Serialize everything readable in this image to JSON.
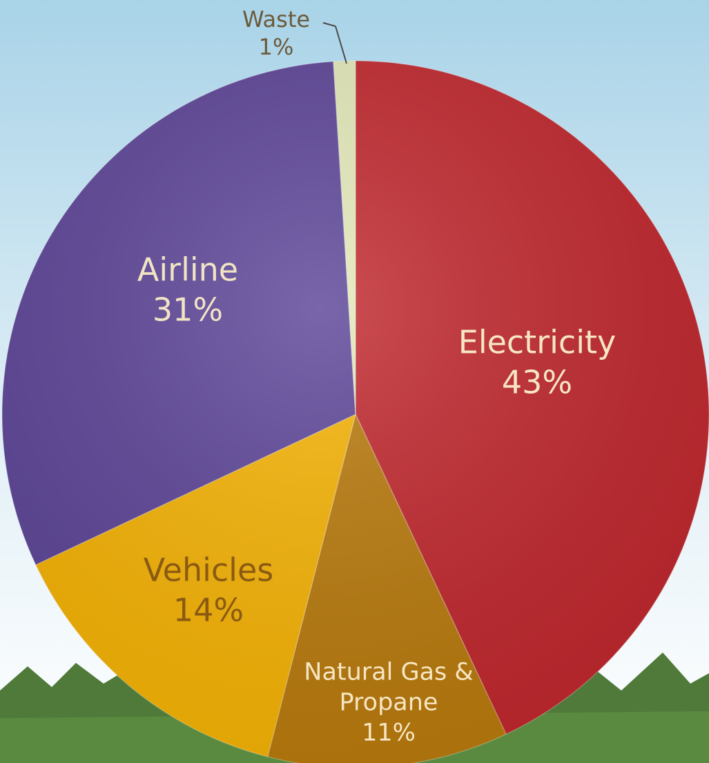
{
  "chart_data": {
    "type": "pie",
    "categories": [
      "Electricity",
      "Natural Gas & Propane",
      "Vehicles",
      "Airline",
      "Waste"
    ],
    "values": [
      43,
      11,
      14,
      31,
      1
    ],
    "value_labels": [
      "43%",
      "11%",
      "14%",
      "31%",
      "1%"
    ],
    "colors": [
      "#c0272d",
      "#b97a0c",
      "#f6b304",
      "#5c4497",
      "#e4e9b9"
    ]
  }
}
